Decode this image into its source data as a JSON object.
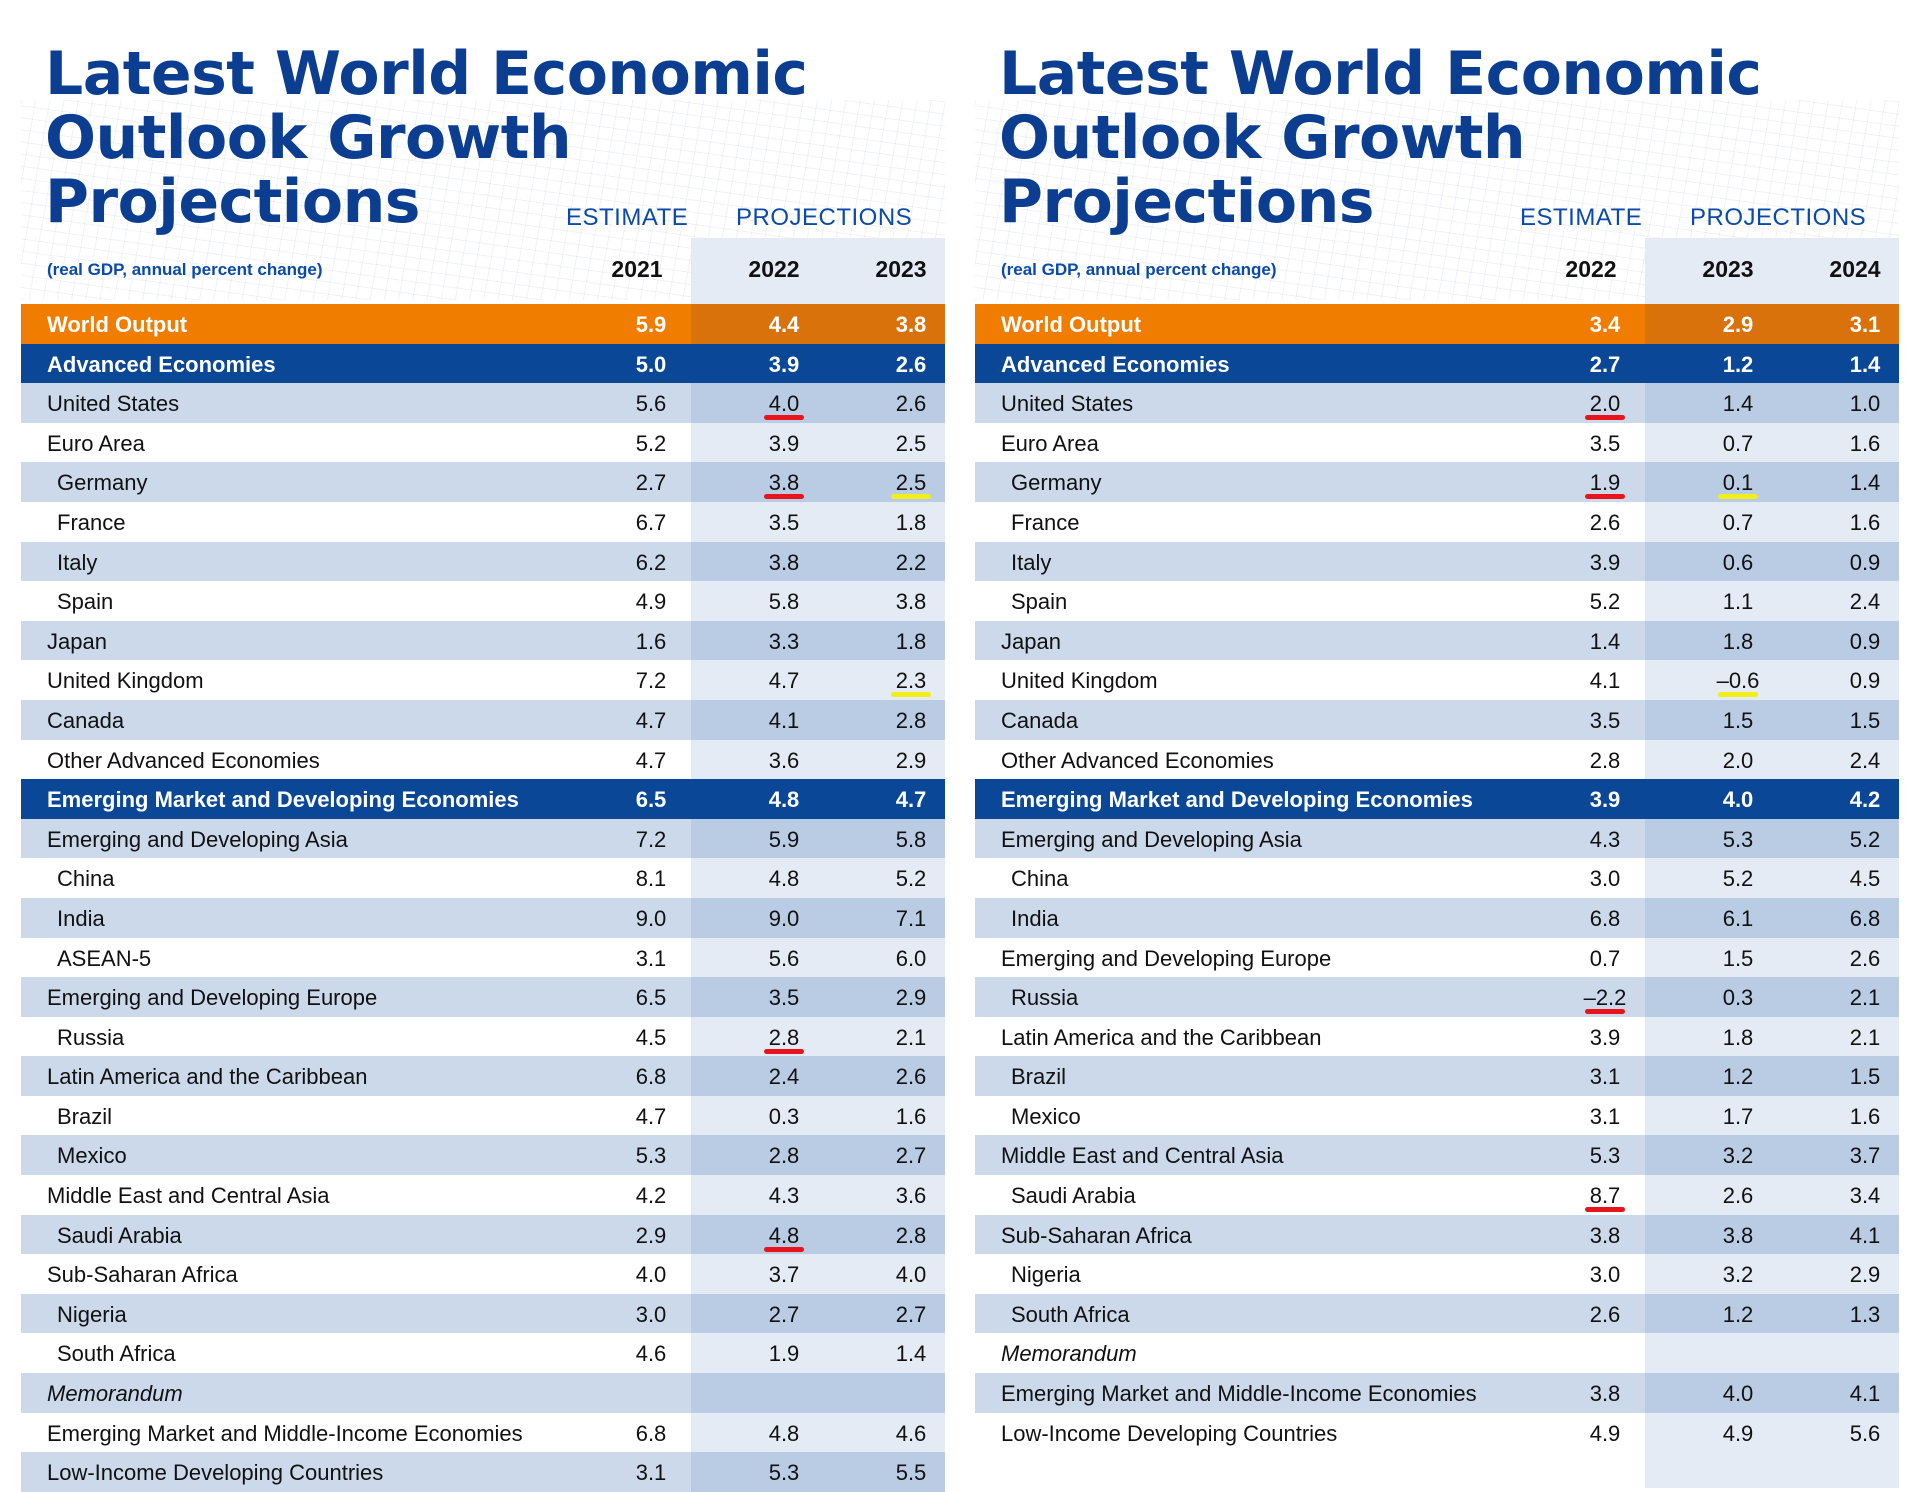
{
  "panels": [
    {
      "title_line1": "Latest World Economic",
      "title_line2": "Outlook Growth Projections",
      "estimate_label": "ESTIMATE",
      "projections_label": "PROJECTIONS",
      "units": "(real GDP, annual percent change)",
      "years": [
        "2021",
        "2022",
        "2023"
      ],
      "rows": [
        {
          "label": "World Output",
          "type": "world",
          "values": [
            "5.9",
            "4.4",
            "3.8"
          ]
        },
        {
          "label": "Advanced Economies",
          "type": "group",
          "values": [
            "5.0",
            "3.9",
            "2.6"
          ]
        },
        {
          "label": "United States",
          "type": "normal",
          "values": [
            "5.6",
            "4.0",
            "2.6"
          ]
        },
        {
          "label": "Euro Area",
          "type": "normal",
          "values": [
            "5.2",
            "3.9",
            "2.5"
          ]
        },
        {
          "label": "Germany",
          "type": "indent",
          "values": [
            "2.7",
            "3.8",
            "2.5"
          ]
        },
        {
          "label": "France",
          "type": "indent",
          "values": [
            "6.7",
            "3.5",
            "1.8"
          ]
        },
        {
          "label": "Italy",
          "type": "indent",
          "values": [
            "6.2",
            "3.8",
            "2.2"
          ]
        },
        {
          "label": "Spain",
          "type": "indent",
          "values": [
            "4.9",
            "5.8",
            "3.8"
          ]
        },
        {
          "label": "Japan",
          "type": "normal",
          "values": [
            "1.6",
            "3.3",
            "1.8"
          ]
        },
        {
          "label": "United Kingdom",
          "type": "normal",
          "values": [
            "7.2",
            "4.7",
            "2.3"
          ]
        },
        {
          "label": "Canada",
          "type": "normal",
          "values": [
            "4.7",
            "4.1",
            "2.8"
          ]
        },
        {
          "label": "Other Advanced Economies",
          "type": "normal",
          "values": [
            "4.7",
            "3.6",
            "2.9"
          ]
        },
        {
          "label": "Emerging Market and Developing Economies",
          "type": "group",
          "values": [
            "6.5",
            "4.8",
            "4.7"
          ]
        },
        {
          "label": "Emerging and Developing Asia",
          "type": "normal",
          "values": [
            "7.2",
            "5.9",
            "5.8"
          ]
        },
        {
          "label": "China",
          "type": "indent",
          "values": [
            "8.1",
            "4.8",
            "5.2"
          ]
        },
        {
          "label": "India",
          "type": "indent",
          "values": [
            "9.0",
            "9.0",
            "7.1"
          ]
        },
        {
          "label": "ASEAN-5",
          "type": "indent",
          "values": [
            "3.1",
            "5.6",
            "6.0"
          ]
        },
        {
          "label": "Emerging and Developing Europe",
          "type": "normal",
          "values": [
            "6.5",
            "3.5",
            "2.9"
          ]
        },
        {
          "label": "Russia",
          "type": "indent",
          "values": [
            "4.5",
            "2.8",
            "2.1"
          ]
        },
        {
          "label": "Latin America and the Caribbean",
          "type": "normal",
          "values": [
            "6.8",
            "2.4",
            "2.6"
          ]
        },
        {
          "label": "Brazil",
          "type": "indent",
          "values": [
            "4.7",
            "0.3",
            "1.6"
          ]
        },
        {
          "label": "Mexico",
          "type": "indent",
          "values": [
            "5.3",
            "2.8",
            "2.7"
          ]
        },
        {
          "label": "Middle East and Central Asia",
          "type": "normal",
          "values": [
            "4.2",
            "4.3",
            "3.6"
          ]
        },
        {
          "label": "Saudi Arabia",
          "type": "indent",
          "values": [
            "2.9",
            "4.8",
            "2.8"
          ]
        },
        {
          "label": "Sub-Saharan Africa",
          "type": "normal",
          "values": [
            "4.0",
            "3.7",
            "4.0"
          ]
        },
        {
          "label": "Nigeria",
          "type": "indent",
          "values": [
            "3.0",
            "2.7",
            "2.7"
          ]
        },
        {
          "label": "South Africa",
          "type": "indent",
          "values": [
            "4.6",
            "1.9",
            "1.4"
          ]
        },
        {
          "label": "Memorandum",
          "type": "memo",
          "values": [
            "",
            "",
            ""
          ]
        },
        {
          "label": "Emerging Market and Middle-Income Economies",
          "type": "normal",
          "values": [
            "6.8",
            "4.8",
            "4.6"
          ]
        },
        {
          "label": "Low-Income Developing Countries",
          "type": "normal",
          "values": [
            "3.1",
            "5.3",
            "5.5"
          ]
        }
      ],
      "marks": [
        {
          "row": 2,
          "col": 1,
          "color": "red"
        },
        {
          "row": 4,
          "col": 1,
          "color": "red"
        },
        {
          "row": 4,
          "col": 2,
          "color": "yellow"
        },
        {
          "row": 9,
          "col": 2,
          "color": "yellow"
        },
        {
          "row": 18,
          "col": 1,
          "color": "red"
        },
        {
          "row": 23,
          "col": 1,
          "color": "red"
        }
      ]
    },
    {
      "title_line1": "Latest World Economic",
      "title_line2": "Outlook Growth Projections",
      "estimate_label": "ESTIMATE",
      "projections_label": "PROJECTIONS",
      "units": "(real GDP, annual percent change)",
      "years": [
        "2022",
        "2023",
        "2024"
      ],
      "rows": [
        {
          "label": "World Output",
          "type": "world",
          "values": [
            "3.4",
            "2.9",
            "3.1"
          ]
        },
        {
          "label": "Advanced Economies",
          "type": "group",
          "values": [
            "2.7",
            "1.2",
            "1.4"
          ]
        },
        {
          "label": "United States",
          "type": "normal",
          "values": [
            "2.0",
            "1.4",
            "1.0"
          ]
        },
        {
          "label": "Euro Area",
          "type": "normal",
          "values": [
            "3.5",
            "0.7",
            "1.6"
          ]
        },
        {
          "label": "Germany",
          "type": "indent",
          "values": [
            "1.9",
            "0.1",
            "1.4"
          ]
        },
        {
          "label": "France",
          "type": "indent",
          "values": [
            "2.6",
            "0.7",
            "1.6"
          ]
        },
        {
          "label": "Italy",
          "type": "indent",
          "values": [
            "3.9",
            "0.6",
            "0.9"
          ]
        },
        {
          "label": "Spain",
          "type": "indent",
          "values": [
            "5.2",
            "1.1",
            "2.4"
          ]
        },
        {
          "label": "Japan",
          "type": "normal",
          "values": [
            "1.4",
            "1.8",
            "0.9"
          ]
        },
        {
          "label": "United Kingdom",
          "type": "normal",
          "values": [
            "4.1",
            "–0.6",
            "0.9"
          ]
        },
        {
          "label": "Canada",
          "type": "normal",
          "values": [
            "3.5",
            "1.5",
            "1.5"
          ]
        },
        {
          "label": "Other Advanced Economies",
          "type": "normal",
          "values": [
            "2.8",
            "2.0",
            "2.4"
          ]
        },
        {
          "label": "Emerging Market and Developing Economies",
          "type": "group",
          "values": [
            "3.9",
            "4.0",
            "4.2"
          ]
        },
        {
          "label": "Emerging and Developing Asia",
          "type": "normal",
          "values": [
            "4.3",
            "5.3",
            "5.2"
          ]
        },
        {
          "label": "China",
          "type": "indent",
          "values": [
            "3.0",
            "5.2",
            "4.5"
          ]
        },
        {
          "label": "India",
          "type": "indent",
          "values": [
            "6.8",
            "6.1",
            "6.8"
          ]
        },
        {
          "label": "Emerging and Developing Europe",
          "type": "normal",
          "values": [
            "0.7",
            "1.5",
            "2.6"
          ]
        },
        {
          "label": "Russia",
          "type": "indent",
          "values": [
            "–2.2",
            "0.3",
            "2.1"
          ]
        },
        {
          "label": "Latin America and the Caribbean",
          "type": "normal",
          "values": [
            "3.9",
            "1.8",
            "2.1"
          ]
        },
        {
          "label": "Brazil",
          "type": "indent",
          "values": [
            "3.1",
            "1.2",
            "1.5"
          ]
        },
        {
          "label": "Mexico",
          "type": "indent",
          "values": [
            "3.1",
            "1.7",
            "1.6"
          ]
        },
        {
          "label": "Middle East and Central Asia",
          "type": "normal",
          "values": [
            "5.3",
            "3.2",
            "3.7"
          ]
        },
        {
          "label": "Saudi Arabia",
          "type": "indent",
          "values": [
            "8.7",
            "2.6",
            "3.4"
          ]
        },
        {
          "label": "Sub-Saharan Africa",
          "type": "normal",
          "values": [
            "3.8",
            "3.8",
            "4.1"
          ]
        },
        {
          "label": "Nigeria",
          "type": "indent",
          "values": [
            "3.0",
            "3.2",
            "2.9"
          ]
        },
        {
          "label": "South Africa",
          "type": "indent",
          "values": [
            "2.6",
            "1.2",
            "1.3"
          ]
        },
        {
          "label": "Memorandum",
          "type": "memo",
          "values": [
            "",
            "",
            ""
          ]
        },
        {
          "label": "Emerging Market and Middle-Income Economies",
          "type": "normal",
          "values": [
            "3.8",
            "4.0",
            "4.1"
          ]
        },
        {
          "label": "Low-Income Developing Countries",
          "type": "normal",
          "values": [
            "4.9",
            "4.9",
            "5.6"
          ]
        }
      ],
      "marks": [
        {
          "row": 2,
          "col": 0,
          "color": "red"
        },
        {
          "row": 4,
          "col": 0,
          "color": "red"
        },
        {
          "row": 4,
          "col": 1,
          "color": "yellow"
        },
        {
          "row": 9,
          "col": 1,
          "color": "yellow"
        },
        {
          "row": 17,
          "col": 0,
          "color": "red"
        },
        {
          "row": 22,
          "col": 0,
          "color": "red"
        }
      ]
    }
  ],
  "colors": {
    "title": "#0b3d91",
    "world_row": "#f07c00",
    "group_row": "#0a4796",
    "band_row": "#cbd9ea",
    "mark_red": "#e8141b",
    "mark_yellow": "#f2ee1a"
  }
}
